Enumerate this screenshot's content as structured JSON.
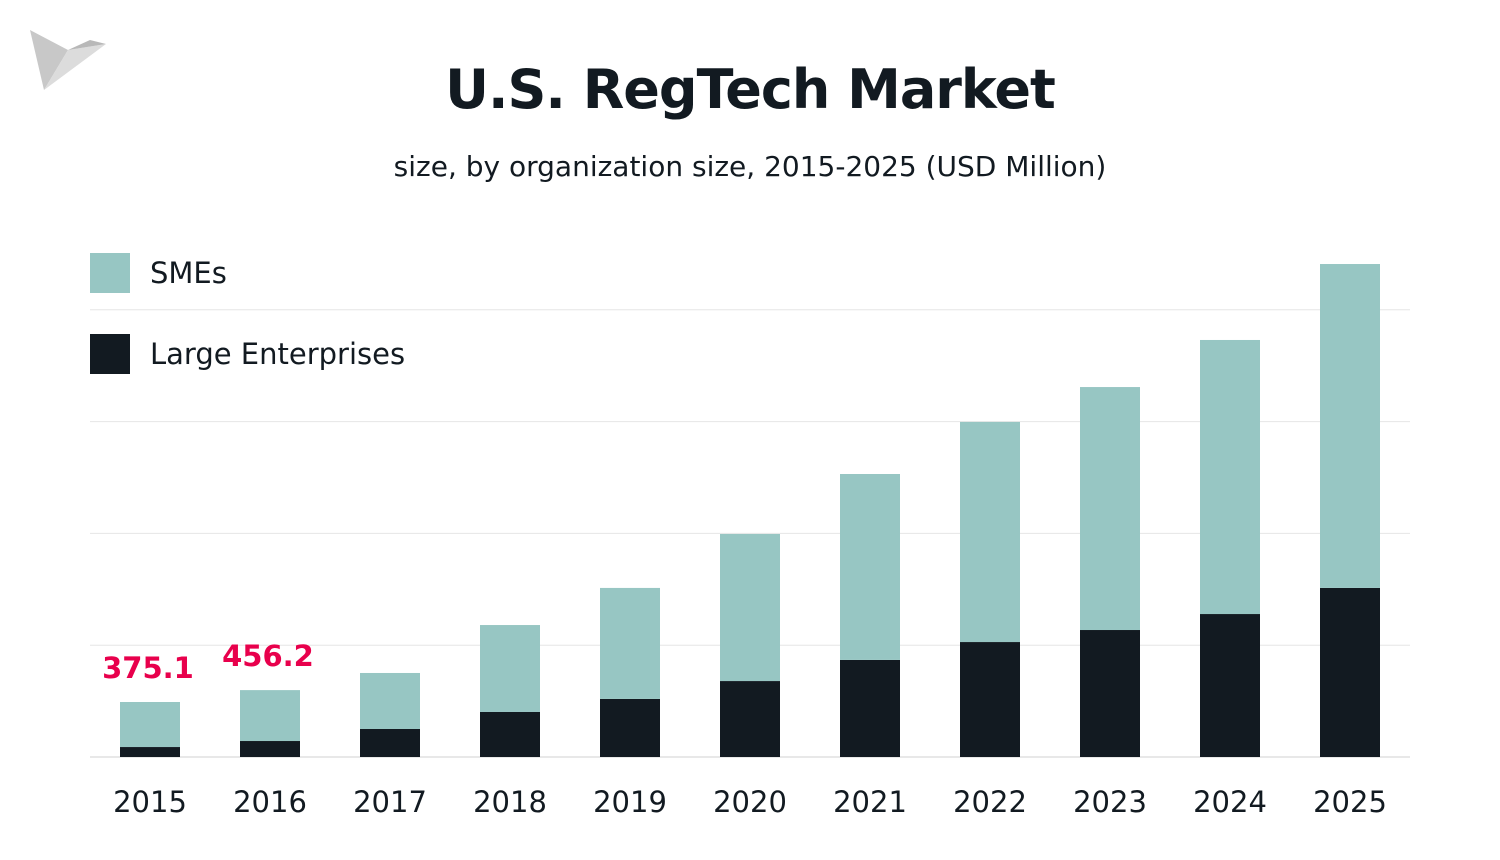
{
  "chart_data": {
    "type": "bar",
    "stacked": true,
    "title": "U.S. RegTech Market",
    "subtitle": "size, by organization size, 2015-2025 (USD Million)",
    "categories": [
      "2015",
      "2016",
      "2017",
      "2018",
      "2019",
      "2020",
      "2021",
      "2022",
      "2023",
      "2024",
      "2025"
    ],
    "series": [
      {
        "name": "Large Enterprises",
        "color": "#121a21",
        "values": [
          68,
          109,
          191,
          307,
          396,
          518,
          662,
          784,
          866,
          975,
          1153
        ]
      },
      {
        "name": "SMEs",
        "color": "#97c6c3",
        "values": [
          307.1,
          347.2,
          382,
          593,
          757,
          1003,
          1268,
          1501,
          1657,
          1869,
          2209
        ]
      }
    ],
    "annotations": [
      {
        "category": "2015",
        "text": "375.1",
        "color": "#e8004c"
      },
      {
        "category": "2016",
        "text": "456.2",
        "color": "#e8004c"
      }
    ],
    "ylim": [
      0,
      3594
    ],
    "grid": true,
    "legend_placement": "top-left",
    "xlabel": "",
    "ylabel": ""
  }
}
